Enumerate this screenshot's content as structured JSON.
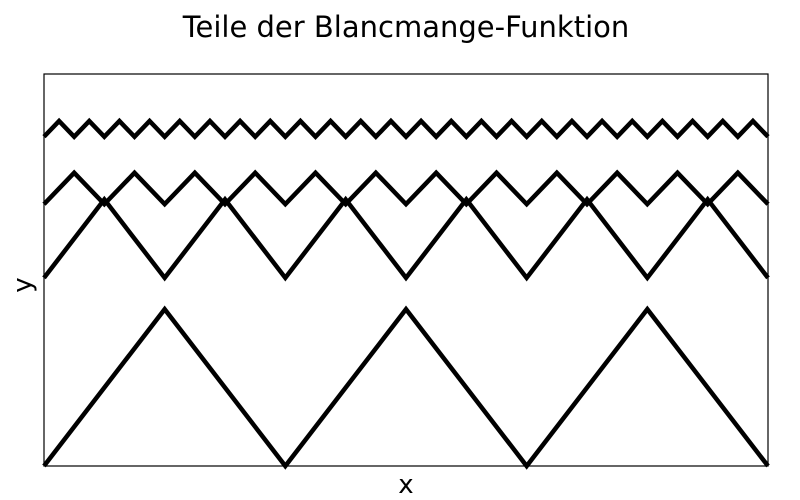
{
  "chart_data": {
    "type": "line",
    "title": "Teile der Blancmange-Funktion",
    "xlabel": "x",
    "ylabel": "y",
    "xlim": [
      0,
      6
    ],
    "ylim": [
      0,
      2.5
    ],
    "grid": false,
    "legend": "none",
    "line_color": "#000000",
    "series": [
      {
        "x": [
          0,
          1,
          2,
          3,
          4,
          5,
          6
        ],
        "y": [
          0,
          1,
          0,
          1,
          0,
          1,
          0
        ]
      },
      {
        "x": [
          0,
          0.5,
          1,
          1.5,
          2,
          2.5,
          3,
          3.5,
          4,
          4.5,
          5,
          5.5,
          6
        ],
        "y": [
          1.2,
          1.7,
          1.2,
          1.7,
          1.2,
          1.7,
          1.2,
          1.7,
          1.2,
          1.7,
          1.2,
          1.7,
          1.2
        ]
      },
      {
        "x": [
          0,
          0.25,
          0.5,
          0.75,
          1,
          1.25,
          1.5,
          1.75,
          2,
          2.25,
          2.5,
          2.75,
          3,
          3.25,
          3.5,
          3.75,
          4,
          4.25,
          4.5,
          4.75,
          5,
          5.25,
          5.5,
          5.75,
          6
        ],
        "y": [
          1.67,
          1.87,
          1.67,
          1.87,
          1.67,
          1.87,
          1.67,
          1.87,
          1.67,
          1.87,
          1.67,
          1.87,
          1.67,
          1.87,
          1.67,
          1.87,
          1.67,
          1.87,
          1.67,
          1.87,
          1.67,
          1.87,
          1.67,
          1.87,
          1.67
        ]
      },
      {
        "x": [
          0,
          0.125,
          0.25,
          0.375,
          0.5,
          0.625,
          0.75,
          0.875,
          1,
          1.125,
          1.25,
          1.375,
          1.5,
          1.625,
          1.75,
          1.875,
          2,
          2.125,
          2.25,
          2.375,
          2.5,
          2.625,
          2.75,
          2.875,
          3,
          3.125,
          3.25,
          3.375,
          3.5,
          3.625,
          3.75,
          3.875,
          4,
          4.125,
          4.25,
          4.375,
          4.5,
          4.625,
          4.75,
          4.875,
          5,
          5.125,
          5.25,
          5.375,
          5.5,
          5.625,
          5.75,
          5.875,
          6
        ],
        "y": [
          2.1,
          2.2,
          2.1,
          2.2,
          2.1,
          2.2,
          2.1,
          2.2,
          2.1,
          2.2,
          2.1,
          2.2,
          2.1,
          2.2,
          2.1,
          2.2,
          2.1,
          2.2,
          2.1,
          2.2,
          2.1,
          2.2,
          2.1,
          2.2,
          2.1,
          2.2,
          2.1,
          2.2,
          2.1,
          2.2,
          2.1,
          2.2,
          2.1,
          2.2,
          2.1,
          2.2,
          2.1,
          2.2,
          2.1,
          2.2,
          2.1,
          2.2,
          2.1,
          2.2,
          2.1,
          2.2,
          2.1,
          2.2,
          2.1
        ]
      }
    ]
  }
}
